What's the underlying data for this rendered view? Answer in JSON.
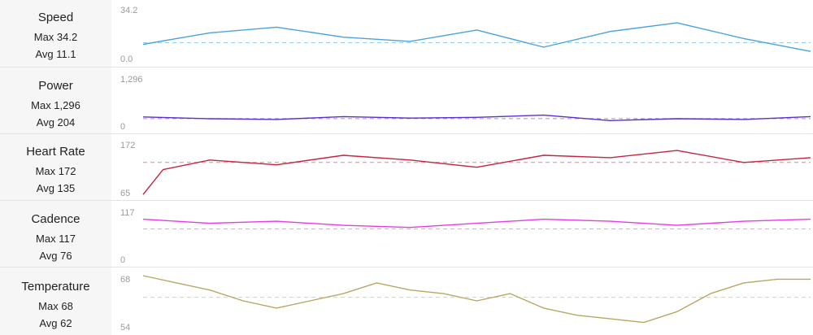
{
  "chart_data": [
    {
      "type": "line",
      "title": "Speed",
      "max_text": "Max 34.2",
      "avg_text": "Avg 11.1",
      "ytick_top": "34.2",
      "ytick_bottom": "0.0",
      "ylim": [
        0,
        34.2
      ],
      "avg": 11.1,
      "color": "#4aa3dc",
      "x": [
        0,
        10,
        20,
        30,
        40,
        50,
        60,
        70,
        80,
        90,
        100
      ],
      "values": [
        10,
        18,
        22,
        15,
        12,
        20,
        8,
        19,
        25,
        14,
        5
      ]
    },
    {
      "type": "line",
      "title": "Power",
      "max_text": "Max 1,296",
      "avg_text": "Avg 204",
      "ytick_top": "1,296",
      "ytick_bottom": "0",
      "ylim": [
        0,
        1296
      ],
      "avg": 204,
      "color": "#5b2fcf",
      "x": [
        0,
        10,
        20,
        30,
        40,
        50,
        60,
        70,
        80,
        90,
        100
      ],
      "values": [
        250,
        200,
        180,
        260,
        220,
        240,
        300,
        150,
        200,
        180,
        260
      ]
    },
    {
      "type": "line",
      "title": "Heart Rate",
      "max_text": "Max 172",
      "avg_text": "Avg 135",
      "ytick_top": "172",
      "ytick_bottom": "65",
      "ylim": [
        65,
        172
      ],
      "avg": 135,
      "color": "#c8233f",
      "x": [
        0,
        3,
        10,
        20,
        30,
        40,
        50,
        60,
        70,
        80,
        90,
        100
      ],
      "values": [
        68,
        120,
        140,
        130,
        150,
        140,
        125,
        150,
        145,
        160,
        135,
        145
      ]
    },
    {
      "type": "line",
      "title": "Cadence",
      "max_text": "Max 117",
      "avg_text": "Avg 76",
      "ytick_top": "117",
      "ytick_bottom": "0",
      "ylim": [
        0,
        117
      ],
      "avg": 76,
      "color": "#e83ae6",
      "x": [
        0,
        10,
        20,
        30,
        40,
        50,
        60,
        70,
        80,
        90,
        100
      ],
      "values": [
        100,
        90,
        95,
        85,
        80,
        90,
        100,
        95,
        85,
        95,
        100
      ]
    },
    {
      "type": "line",
      "title": "Temperature",
      "max_text": "Max 68",
      "avg_text": "Avg 62",
      "ytick_top": "68",
      "ytick_bottom": "54",
      "ylim": [
        54,
        68
      ],
      "avg": 62,
      "color": "#b8a764",
      "x": [
        0,
        5,
        10,
        15,
        20,
        25,
        30,
        35,
        40,
        45,
        50,
        55,
        60,
        65,
        70,
        75,
        80,
        85,
        90,
        95,
        100
      ],
      "values": [
        68,
        66,
        64,
        61,
        59,
        61,
        63,
        66,
        64,
        63,
        61,
        63,
        59,
        57,
        56,
        55,
        58,
        63,
        66,
        67,
        67
      ]
    }
  ]
}
